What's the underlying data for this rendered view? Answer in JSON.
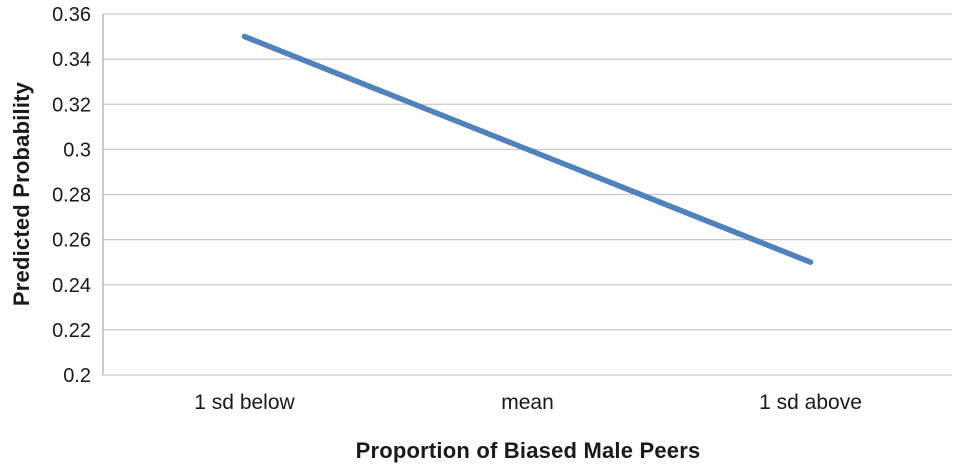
{
  "chart_data": {
    "type": "line",
    "title": "",
    "xlabel": "Proportion of Biased Male Peers",
    "ylabel": "Predicted Probability",
    "categories": [
      "1 sd below",
      "mean",
      "1 sd above"
    ],
    "series": [
      {
        "name": "Predicted Probability",
        "values": [
          0.35,
          0.3,
          0.25
        ],
        "color": "#4f81bd"
      }
    ],
    "ylim": [
      0.2,
      0.36
    ],
    "y_tick_step": 0.02,
    "y_ticks": [
      "0.2",
      "0.22",
      "0.24",
      "0.26",
      "0.28",
      "0.3",
      "0.32",
      "0.34",
      "0.36"
    ],
    "grid": "horizontal",
    "legend_position": "none",
    "colors": {
      "line": "#4f81bd",
      "gridline": "#c9c9c9",
      "axis_line": "#a9a9a9",
      "text": "#1a1a1a"
    }
  }
}
